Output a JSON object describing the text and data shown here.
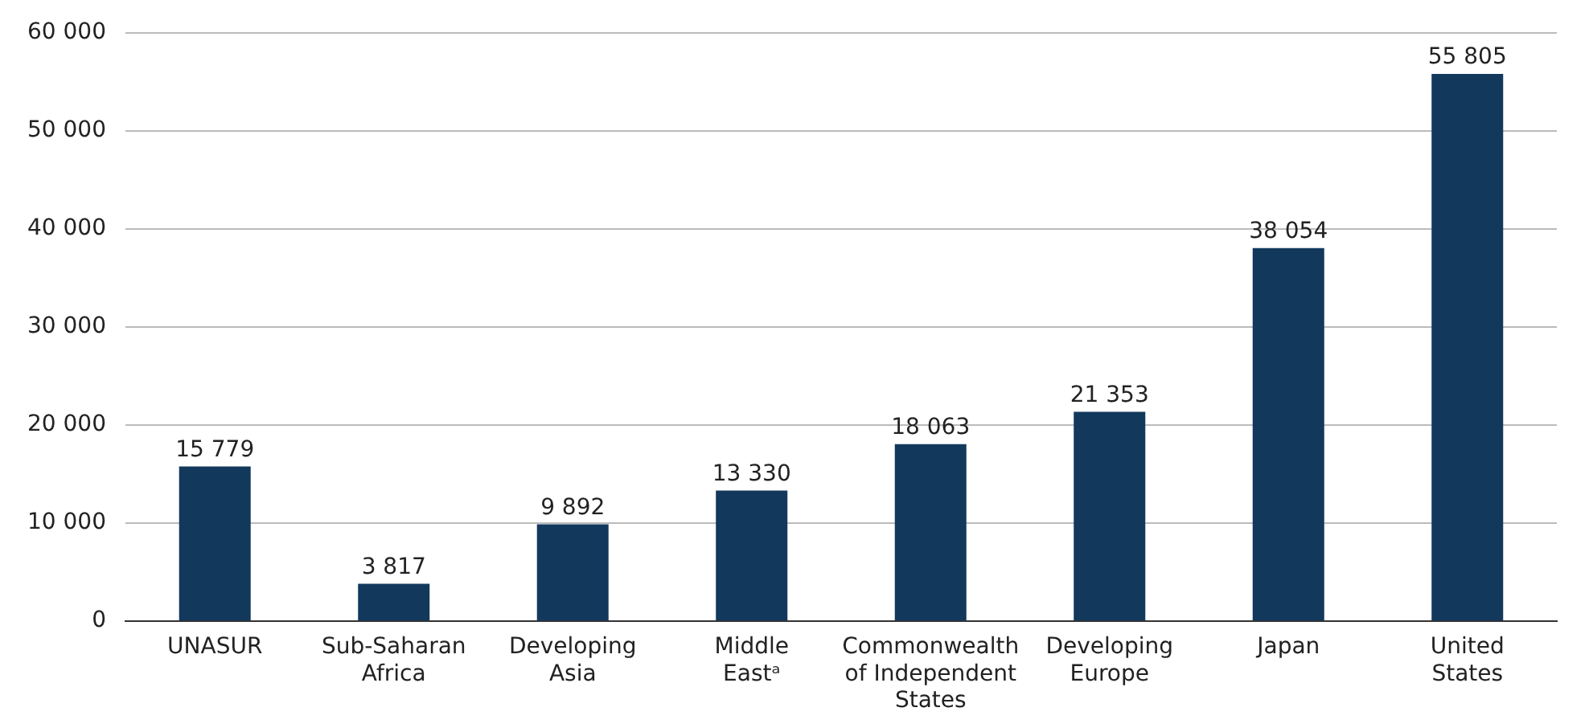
{
  "chart_data": {
    "type": "bar",
    "categories": [
      "UNASUR",
      "Sub-Saharan Africa",
      "Developing Asia",
      "Middle Eastᵃ",
      "Commonwealth of Independent States",
      "Developing Europe",
      "Japan",
      "United States"
    ],
    "values": [
      15779,
      3817,
      9892,
      13330,
      18063,
      21353,
      38054,
      55805
    ],
    "value_labels": [
      "15 779",
      "3 817",
      "9 892",
      "13 330",
      "18 063",
      "21 353",
      "38 054",
      "55 805"
    ],
    "color": "#12385c",
    "ylim": [
      0,
      60000
    ],
    "yticks": [
      {
        "value": 0,
        "label": "0"
      },
      {
        "value": 10000,
        "label": "10 000"
      },
      {
        "value": 20000,
        "label": "20 000"
      },
      {
        "value": 30000,
        "label": "30 000"
      },
      {
        "value": 40000,
        "label": "40 000"
      },
      {
        "value": 50000,
        "label": "50 000"
      },
      {
        "value": 60000,
        "label": "60 000"
      }
    ],
    "grid": "y",
    "legend": false
  }
}
